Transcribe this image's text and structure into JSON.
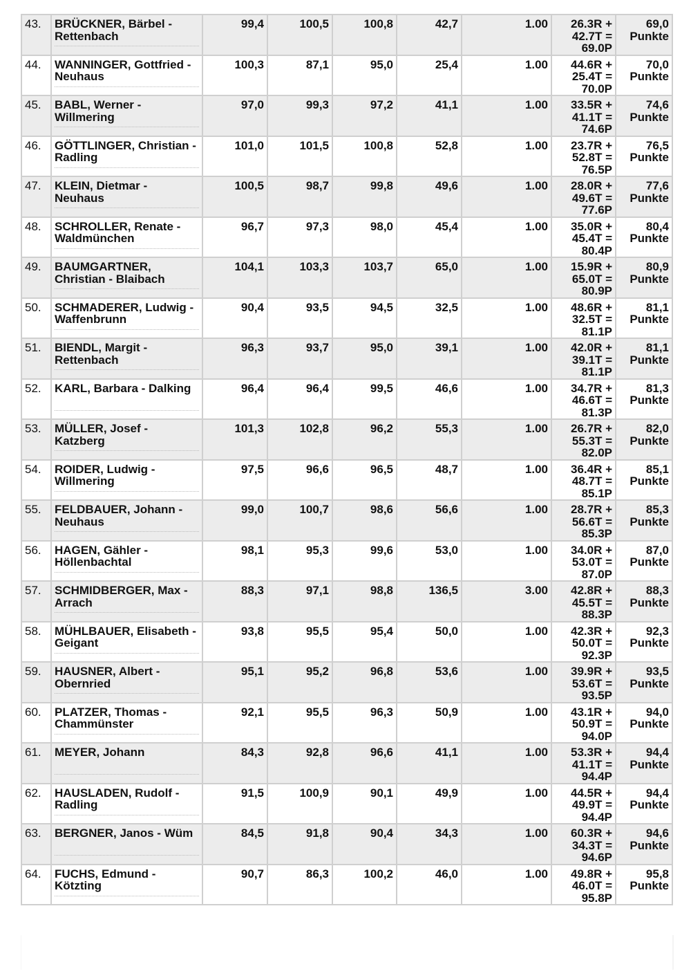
{
  "rows": [
    {
      "rank": "43.",
      "name": "BRÜCKNER, Bärbel - Rettenbach",
      "c1": "99,4",
      "c2": "100,5",
      "c3": "100,8",
      "c4": "42,7",
      "c5": "1.00",
      "calc": [
        "26.3R +",
        "42.7T =",
        "69.0P"
      ],
      "points": "69,0",
      "unit": "Punkte"
    },
    {
      "rank": "44.",
      "name": "WANNINGER, Gottfried - Neuhaus",
      "c1": "100,3",
      "c2": "87,1",
      "c3": "95,0",
      "c4": "25,4",
      "c5": "1.00",
      "calc": [
        "44.6R +",
        "25.4T =",
        "70.0P"
      ],
      "points": "70,0",
      "unit": "Punkte"
    },
    {
      "rank": "45.",
      "name": "BABL, Werner - Willmering",
      "c1": "97,0",
      "c2": "99,3",
      "c3": "97,2",
      "c4": "41,1",
      "c5": "1.00",
      "calc": [
        "33.5R +",
        "41.1T =",
        "74.6P"
      ],
      "points": "74,6",
      "unit": "Punkte"
    },
    {
      "rank": "46.",
      "name": "GÖTTLINGER, Christian - Radling",
      "c1": "101,0",
      "c2": "101,5",
      "c3": "100,8",
      "c4": "52,8",
      "c5": "1.00",
      "calc": [
        "23.7R +",
        "52.8T =",
        "76.5P"
      ],
      "points": "76,5",
      "unit": "Punkte"
    },
    {
      "rank": "47.",
      "name": "KLEIN, Dietmar - Neuhaus",
      "c1": "100,5",
      "c2": "98,7",
      "c3": "99,8",
      "c4": "49,6",
      "c5": "1.00",
      "calc": [
        "28.0R +",
        "49.6T =",
        "77.6P"
      ],
      "points": "77,6",
      "unit": "Punkte"
    },
    {
      "rank": "48.",
      "name": "SCHROLLER, Renate - Waldmünchen",
      "c1": "96,7",
      "c2": "97,3",
      "c3": "98,0",
      "c4": "45,4",
      "c5": "1.00",
      "calc": [
        "35.0R +",
        "45.4T =",
        "80.4P"
      ],
      "points": "80,4",
      "unit": "Punkte"
    },
    {
      "rank": "49.",
      "name": "BAUMGARTNER, Christian - Blaibach",
      "c1": "104,1",
      "c2": "103,3",
      "c3": "103,7",
      "c4": "65,0",
      "c5": "1.00",
      "calc": [
        "15.9R +",
        "65.0T =",
        "80.9P"
      ],
      "points": "80,9",
      "unit": "Punkte"
    },
    {
      "rank": "50.",
      "name": "SCHMADERER, Ludwig - Waffenbrunn",
      "c1": "90,4",
      "c2": "93,5",
      "c3": "94,5",
      "c4": "32,5",
      "c5": "1.00",
      "calc": [
        "48.6R +",
        "32.5T =",
        "81.1P"
      ],
      "points": "81,1",
      "unit": "Punkte"
    },
    {
      "rank": "51.",
      "name": "BIENDL, Margit - Rettenbach",
      "c1": "96,3",
      "c2": "93,7",
      "c3": "95,0",
      "c4": "39,1",
      "c5": "1.00",
      "calc": [
        "42.0R +",
        "39.1T =",
        "81.1P"
      ],
      "points": "81,1",
      "unit": "Punkte"
    },
    {
      "rank": "52.",
      "name": "KARL, Barbara - Dalking",
      "c1": "96,4",
      "c2": "96,4",
      "c3": "99,5",
      "c4": "46,6",
      "c5": "1.00",
      "calc": [
        "34.7R +",
        "46.6T =",
        "81.3P"
      ],
      "points": "81,3",
      "unit": "Punkte"
    },
    {
      "rank": "53.",
      "name": "MÜLLER, Josef - Katzberg",
      "c1": "101,3",
      "c2": "102,8",
      "c3": "96,2",
      "c4": "55,3",
      "c5": "1.00",
      "calc": [
        "26.7R +",
        "55.3T =",
        "82.0P"
      ],
      "points": "82,0",
      "unit": "Punkte"
    },
    {
      "rank": "54.",
      "name": "ROIDER, Ludwig - Willmering",
      "c1": "97,5",
      "c2": "96,6",
      "c3": "96,5",
      "c4": "48,7",
      "c5": "1.00",
      "calc": [
        "36.4R +",
        "48.7T =",
        "85.1P"
      ],
      "points": "85,1",
      "unit": "Punkte"
    },
    {
      "rank": "55.",
      "name": "FELDBAUER, Johann - Neuhaus",
      "c1": "99,0",
      "c2": "100,7",
      "c3": "98,6",
      "c4": "56,6",
      "c5": "1.00",
      "calc": [
        "28.7R +",
        "56.6T =",
        "85.3P"
      ],
      "points": "85,3",
      "unit": "Punkte"
    },
    {
      "rank": "56.",
      "name": "HAGEN, Gähler - Höllenbachtal",
      "c1": "98,1",
      "c2": "95,3",
      "c3": "99,6",
      "c4": "53,0",
      "c5": "1.00",
      "calc": [
        "34.0R +",
        "53.0T =",
        "87.0P"
      ],
      "points": "87,0",
      "unit": "Punkte"
    },
    {
      "rank": "57.",
      "name": "SCHMIDBERGER, Max - Arrach",
      "c1": "88,3",
      "c2": "97,1",
      "c3": "98,8",
      "c4": "136,5",
      "c5": "3.00",
      "calc": [
        "42.8R +",
        "45.5T =",
        "88.3P"
      ],
      "points": "88,3",
      "unit": "Punkte"
    },
    {
      "rank": "58.",
      "name": "MÜHLBAUER, Elisabeth - Geigant",
      "c1": "93,8",
      "c2": "95,5",
      "c3": "95,4",
      "c4": "50,0",
      "c5": "1.00",
      "calc": [
        "42.3R +",
        "50.0T =",
        "92.3P"
      ],
      "points": "92,3",
      "unit": "Punkte"
    },
    {
      "rank": "59.",
      "name": "HAUSNER, Albert - Obernried",
      "c1": "95,1",
      "c2": "95,2",
      "c3": "96,8",
      "c4": "53,6",
      "c5": "1.00",
      "calc": [
        "39.9R +",
        "53.6T =",
        "93.5P"
      ],
      "points": "93,5",
      "unit": "Punkte"
    },
    {
      "rank": "60.",
      "name": "PLATZER, Thomas - Chammünster",
      "c1": "92,1",
      "c2": "95,5",
      "c3": "96,3",
      "c4": "50,9",
      "c5": "1.00",
      "calc": [
        "43.1R +",
        "50.9T =",
        "94.0P"
      ],
      "points": "94,0",
      "unit": "Punkte"
    },
    {
      "rank": "61.",
      "name": "MEYER, Johann",
      "c1": "84,3",
      "c2": "92,8",
      "c3": "96,6",
      "c4": "41,1",
      "c5": "1.00",
      "calc": [
        "53.3R +",
        "41.1T =",
        "94.4P"
      ],
      "points": "94,4",
      "unit": "Punkte"
    },
    {
      "rank": "62.",
      "name": "HAUSLADEN, Rudolf - Radling",
      "c1": "91,5",
      "c2": "100,9",
      "c3": "90,1",
      "c4": "49,9",
      "c5": "1.00",
      "calc": [
        "44.5R +",
        "49.9T =",
        "94.4P"
      ],
      "points": "94,4",
      "unit": "Punkte"
    },
    {
      "rank": "63.",
      "name": "BERGNER, Janos - Wüm",
      "c1": "84,5",
      "c2": "91,8",
      "c3": "90,4",
      "c4": "34,3",
      "c5": "1.00",
      "calc": [
        "60.3R +",
        "34.3T =",
        "94.6P"
      ],
      "points": "94,6",
      "unit": "Punkte"
    },
    {
      "rank": "64.",
      "name": "FUCHS, Edmund - Kötzting",
      "c1": "90,7",
      "c2": "86,3",
      "c3": "100,2",
      "c4": "46,0",
      "c5": "1.00",
      "calc": [
        "49.8R +",
        "46.0T =",
        "95.8P"
      ],
      "points": "95,8",
      "unit": "Punkte"
    }
  ]
}
